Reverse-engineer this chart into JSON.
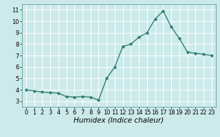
{
  "x": [
    0,
    1,
    2,
    3,
    4,
    5,
    6,
    7,
    8,
    9,
    10,
    11,
    12,
    13,
    14,
    15,
    16,
    17,
    18,
    19,
    20,
    21,
    22,
    23
  ],
  "y": [
    4.0,
    3.9,
    3.8,
    3.75,
    3.7,
    3.4,
    3.35,
    3.4,
    3.35,
    3.1,
    5.0,
    6.0,
    7.8,
    8.0,
    8.6,
    9.0,
    10.2,
    10.9,
    9.5,
    8.5,
    7.3,
    7.2,
    7.1,
    7.0
  ],
  "line_color": "#2e7d6e",
  "marker": "D",
  "markersize": 2.2,
  "linewidth": 1.0,
  "bg_color": "#cceaea",
  "grid_color": "#b0d8d8",
  "xlabel": "Humidex (Indice chaleur)",
  "xlabel_style": "italic",
  "xlim": [
    -0.5,
    23.5
  ],
  "ylim": [
    2.5,
    11.5
  ],
  "yticks": [
    3,
    4,
    5,
    6,
    7,
    8,
    9,
    10,
    11
  ],
  "xticks": [
    0,
    1,
    2,
    3,
    4,
    5,
    6,
    7,
    8,
    9,
    10,
    11,
    12,
    13,
    14,
    15,
    16,
    17,
    18,
    19,
    20,
    21,
    22,
    23
  ],
  "tick_fontsize": 6,
  "label_fontsize": 7.5
}
